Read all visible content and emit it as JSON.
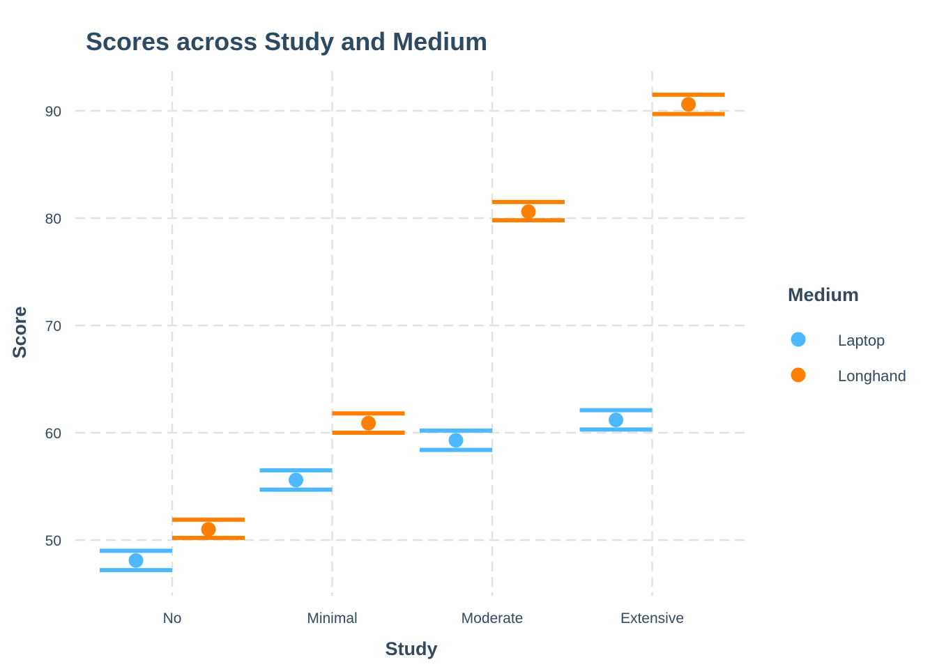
{
  "chart_data": {
    "type": "scatter",
    "subtype": "point-with-error-bars (dodged)",
    "title": "Scores across Study and Medium",
    "xlabel": "Study",
    "ylabel": "Score",
    "categories": [
      "No",
      "Minimal",
      "Moderate",
      "Extensive"
    ],
    "yticks": [
      50,
      60,
      70,
      80,
      90
    ],
    "ylim": [
      45.2,
      94.1
    ],
    "grid": true,
    "legend": {
      "title": "Medium",
      "position": "right",
      "entries": [
        "Laptop",
        "Longhand"
      ]
    },
    "series": [
      {
        "name": "Laptop",
        "color": "#4db8ff",
        "values": [
          48.1,
          55.6,
          59.3,
          61.2
        ],
        "upper": [
          49.0,
          56.5,
          60.2,
          62.1
        ],
        "lower": [
          47.2,
          54.7,
          58.4,
          60.3
        ]
      },
      {
        "name": "Longhand",
        "color": "#ff7f00",
        "values": [
          51.0,
          60.9,
          80.6,
          90.6
        ],
        "upper": [
          51.9,
          61.8,
          81.5,
          91.5
        ],
        "lower": [
          50.2,
          60.0,
          79.8,
          89.7
        ]
      }
    ]
  }
}
